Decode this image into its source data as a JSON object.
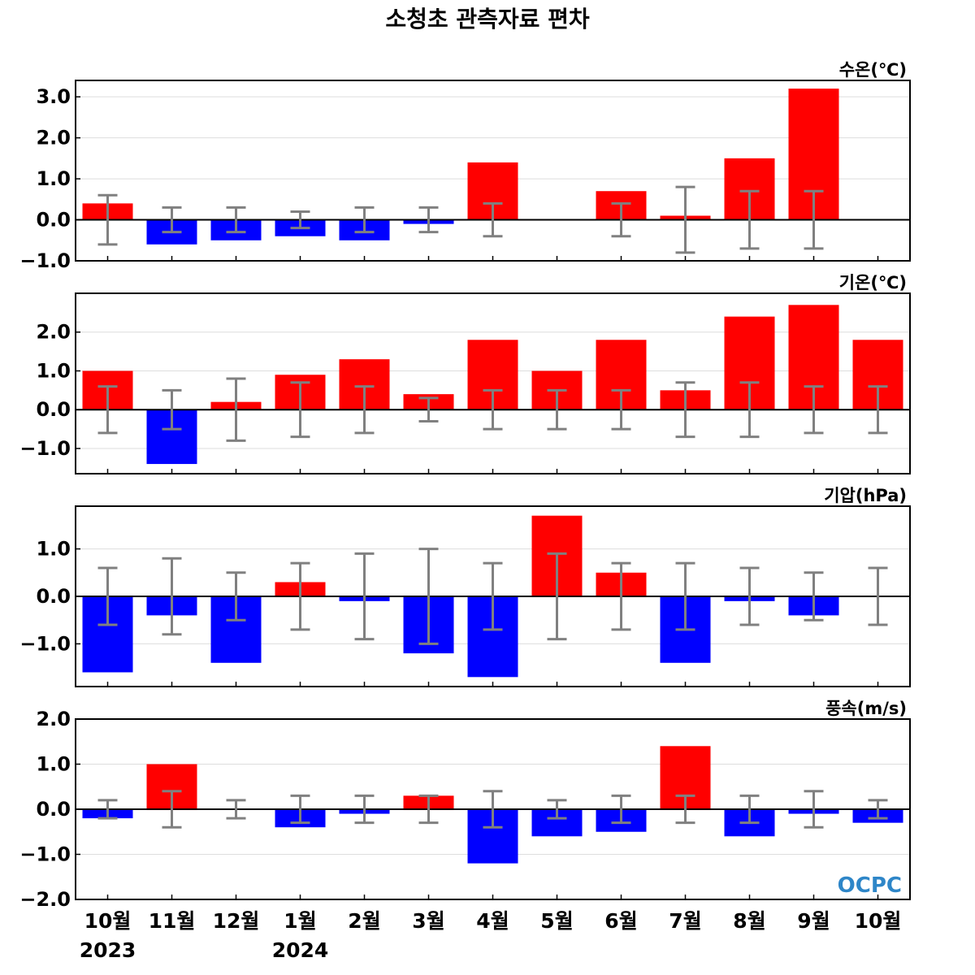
{
  "title": "소청초 관측자료 편차",
  "logo_text": "OCPC",
  "colors": {
    "positive": "#ff0000",
    "negative": "#0000ff",
    "errorbar": "#808080",
    "grid": "#dddddd",
    "logo": "#2e86c8"
  },
  "x_labels": [
    "10월",
    "11월",
    "12월",
    "1월",
    "2월",
    "3월",
    "4월",
    "5월",
    "6월",
    "7월",
    "8월",
    "9월",
    "10월"
  ],
  "year_labels": [
    {
      "index": 0,
      "text": "2023"
    },
    {
      "index": 3,
      "text": "2024"
    }
  ],
  "chart_data": [
    {
      "type": "bar",
      "title": "수온(℃)",
      "ylim": [
        -1.0,
        3.4
      ],
      "yticks": [
        -1.0,
        0.0,
        1.0,
        2.0,
        3.0
      ],
      "grid": true,
      "values": [
        0.4,
        -0.6,
        -0.5,
        -0.4,
        -0.5,
        -0.1,
        1.4,
        null,
        0.7,
        0.1,
        1.5,
        3.2,
        null
      ],
      "error_half": [
        0.6,
        0.3,
        0.3,
        0.2,
        0.3,
        0.3,
        0.4,
        null,
        0.4,
        0.8,
        0.7,
        0.7,
        null
      ]
    },
    {
      "type": "bar",
      "title": "기온(℃)",
      "ylim": [
        -1.65,
        3.0
      ],
      "yticks": [
        -1.0,
        0.0,
        1.0,
        2.0
      ],
      "grid": true,
      "values": [
        1.0,
        -1.4,
        0.2,
        0.9,
        1.3,
        0.4,
        1.8,
        1.0,
        1.8,
        0.5,
        2.4,
        2.7,
        1.8
      ],
      "error_half": [
        0.6,
        0.5,
        0.8,
        0.7,
        0.6,
        0.3,
        0.5,
        0.5,
        0.5,
        0.7,
        0.7,
        0.6,
        0.6
      ]
    },
    {
      "type": "bar",
      "title": "기압(hPa)",
      "ylim": [
        -1.9,
        1.9
      ],
      "yticks": [
        -1.0,
        0.0,
        1.0
      ],
      "grid": true,
      "values": [
        -1.6,
        -0.4,
        -1.4,
        0.3,
        -0.1,
        -1.2,
        -1.7,
        1.7,
        0.5,
        -1.4,
        -0.1,
        -0.4,
        0.0
      ],
      "error_half": [
        0.6,
        0.8,
        0.5,
        0.7,
        0.9,
        1.0,
        0.7,
        0.9,
        0.7,
        0.7,
        0.6,
        0.5,
        0.6
      ]
    },
    {
      "type": "bar",
      "title": "풍속(m/s)",
      "ylim": [
        -2.0,
        2.0
      ],
      "yticks": [
        -2.0,
        -1.0,
        0.0,
        1.0,
        2.0
      ],
      "grid": true,
      "values": [
        -0.2,
        1.0,
        0.0,
        -0.4,
        -0.1,
        0.3,
        -1.2,
        -0.6,
        -0.5,
        1.4,
        -0.6,
        -0.1,
        -0.3
      ],
      "error_half": [
        0.2,
        0.4,
        0.2,
        0.3,
        0.3,
        0.3,
        0.4,
        0.2,
        0.3,
        0.3,
        0.3,
        0.4,
        0.2
      ]
    }
  ]
}
